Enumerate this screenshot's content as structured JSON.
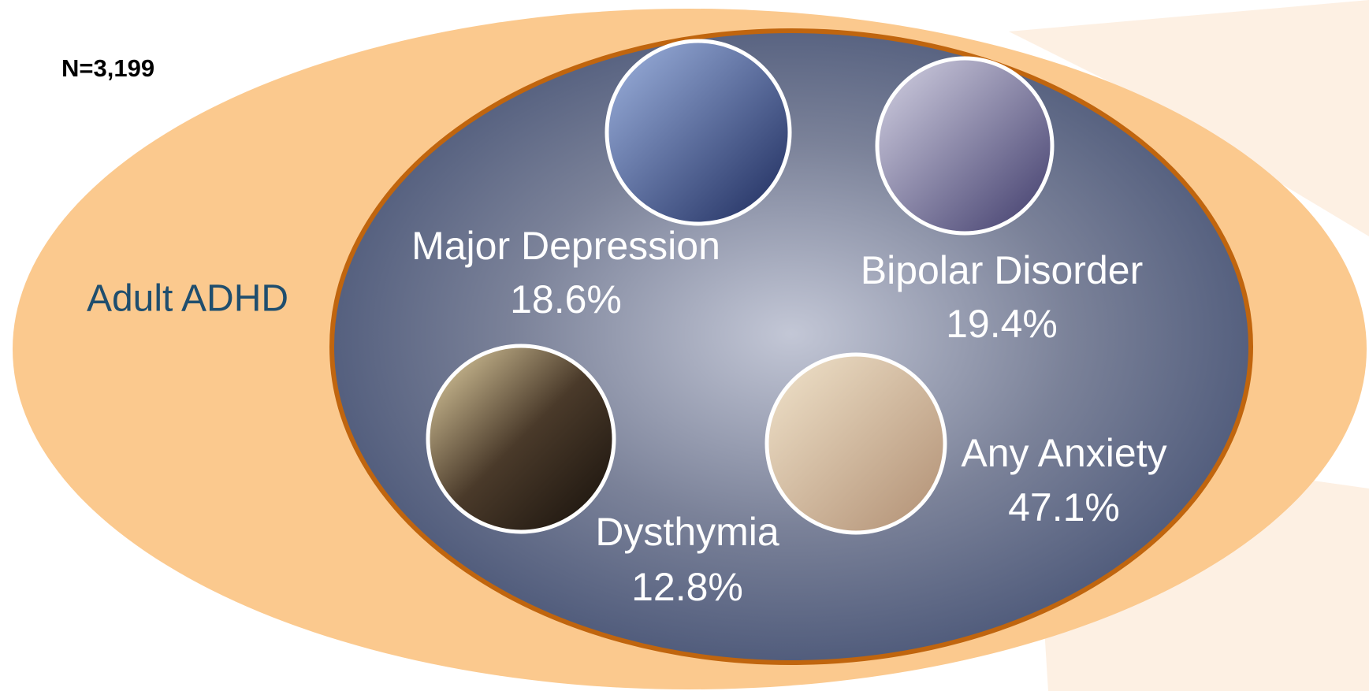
{
  "sample_size": "N=3,199",
  "outer_label": "Adult ADHD",
  "conditions": [
    {
      "name": "Major Depression",
      "value": "18.6%"
    },
    {
      "name": "Bipolar Disorder",
      "value": "19.4%"
    },
    {
      "name": "Dysthymia",
      "value": "12.8%"
    },
    {
      "name": "Any Anxiety",
      "value": "47.1%"
    }
  ]
}
